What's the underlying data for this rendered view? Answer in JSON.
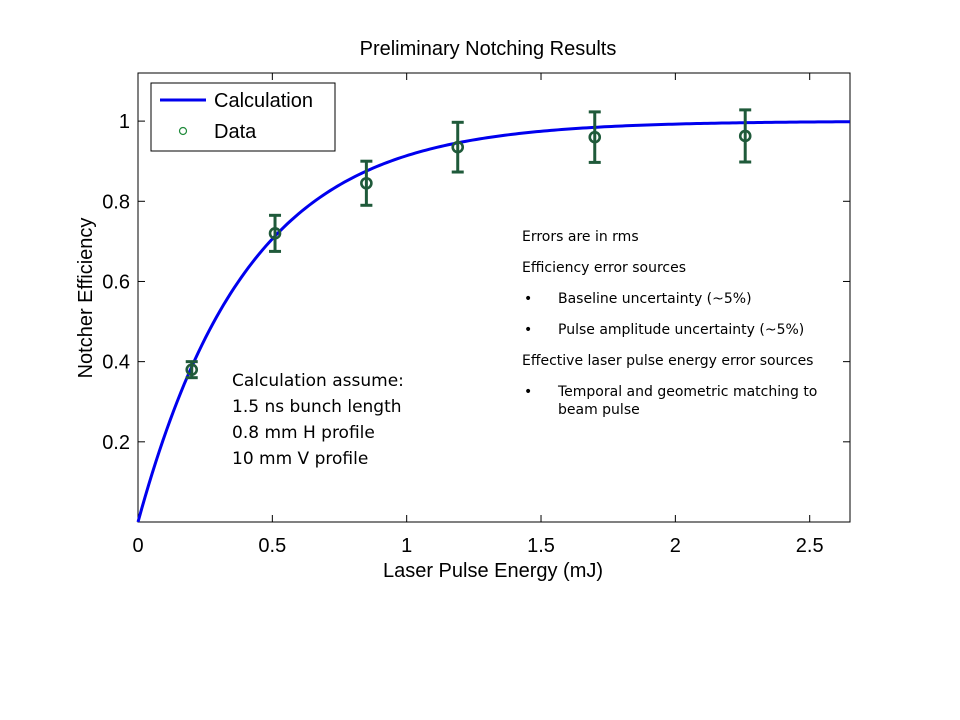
{
  "chart_data": {
    "type": "scatter",
    "title": "Preliminary Notching Results",
    "xlabel": "Laser Pulse Energy (mJ)",
    "ylabel": "Notcher Efficiency",
    "xlim": [
      0,
      2.65
    ],
    "ylim": [
      0,
      1.12
    ],
    "xticks": [
      0,
      0.5,
      1,
      1.5,
      2,
      2.5
    ],
    "xtick_labels": [
      "0",
      "0.5",
      "1",
      "1.5",
      "2",
      "2.5"
    ],
    "yticks": [
      0.2,
      0.4,
      0.6,
      0.8,
      1.0
    ],
    "ytick_labels": [
      "0.2",
      "0.4",
      "0.6",
      "0.8",
      "1"
    ],
    "grid": false,
    "legend_position": "top-left",
    "series": [
      {
        "name": "Calculation",
        "kind": "line",
        "color": "#0000ee",
        "curve": "1 - exp(-2.45 * (x - 0.0))",
        "x": [
          0.0,
          0.1,
          0.2,
          0.3,
          0.4,
          0.5,
          0.6,
          0.7,
          0.8,
          0.9,
          1.0,
          1.1,
          1.2,
          1.3,
          1.4,
          1.5,
          1.6,
          1.8,
          2.0,
          2.2,
          2.4,
          2.65
        ],
        "y": [
          0.0,
          0.22,
          0.39,
          0.52,
          0.62,
          0.71,
          0.77,
          0.82,
          0.86,
          0.89,
          0.915,
          0.933,
          0.948,
          0.96,
          0.968,
          0.975,
          0.98,
          0.988,
          0.993,
          0.996,
          0.998,
          0.999
        ]
      },
      {
        "name": "Data",
        "kind": "errorbar",
        "color": "#1f5a3a",
        "x": [
          0.2,
          0.51,
          0.85,
          1.19,
          1.7,
          2.26
        ],
        "y": [
          0.38,
          0.72,
          0.845,
          0.935,
          0.96,
          0.963
        ],
        "err": [
          0.02,
          0.045,
          0.055,
          0.062,
          0.063,
          0.065
        ]
      }
    ],
    "annotations": {
      "assume": [
        "Calculation assume:",
        "1.5 ns bunch length",
        "0.8 mm H profile",
        "10 mm V profile"
      ],
      "errors_heading": "Errors are in rms",
      "efficiency_heading": "Efficiency error sources",
      "efficiency_items": [
        "Baseline uncertainty (~5%)",
        "Pulse amplitude uncertainty (~5%)"
      ],
      "energy_heading": "Effective laser pulse energy error sources",
      "energy_items": [
        "Temporal and geometric matching to beam pulse"
      ],
      "bullet_char": "•"
    }
  }
}
